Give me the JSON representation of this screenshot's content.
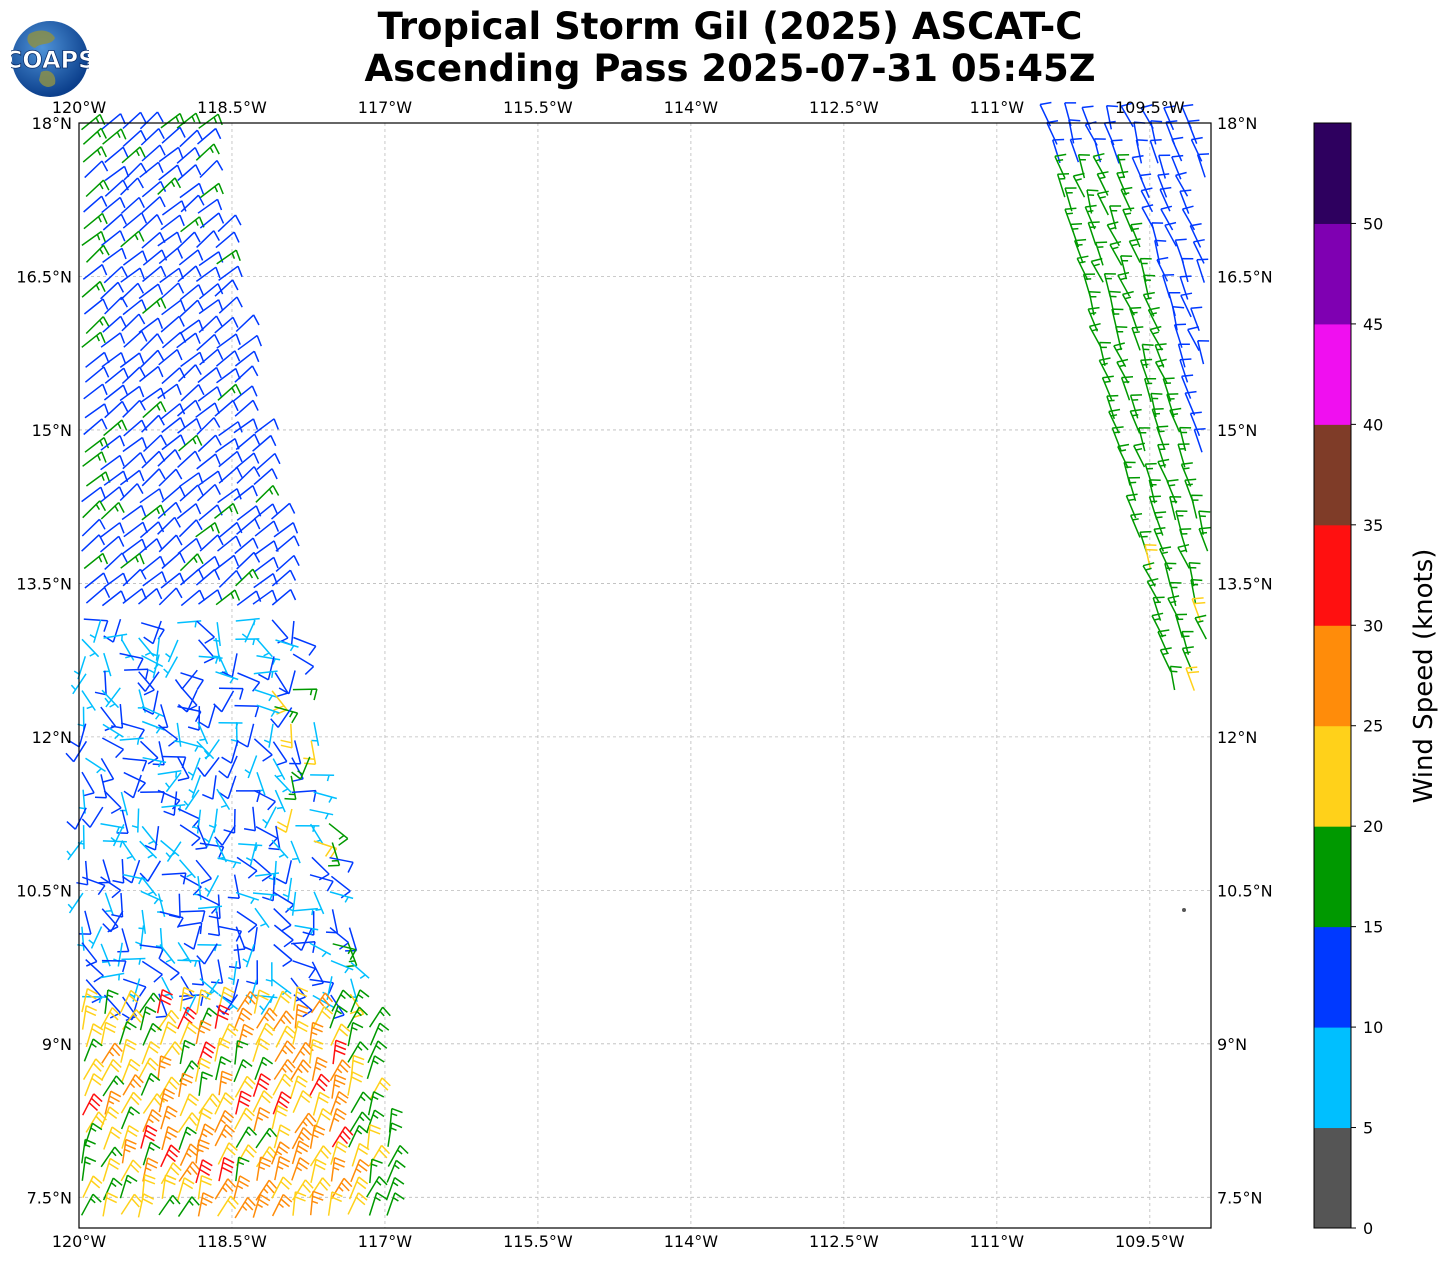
{
  "title": {
    "line1": "Tropical Storm Gil (2025) ASCAT-C",
    "line2": "Ascending Pass 2025-07-31 05:45Z"
  },
  "logo": {
    "text": "COAPS",
    "icon": "globe-logo-icon"
  },
  "map": {
    "lon_ticks": [
      "120°W",
      "118.5°W",
      "117°W",
      "115.5°W",
      "114°W",
      "112.5°W",
      "111°W",
      "109.5°W"
    ],
    "lat_ticks": [
      "18°N",
      "16.5°N",
      "15°N",
      "13.5°N",
      "12°N",
      "10.5°N",
      "9°N",
      "7.5°N"
    ],
    "lon_range": [
      -120.0,
      -108.9
    ],
    "lat_range": [
      7.2,
      18.0
    ],
    "grid": true
  },
  "colorbar": {
    "label": "Wind Speed (knots)",
    "ticks": [
      "0",
      "5",
      "10",
      "15",
      "20",
      "25",
      "30",
      "35",
      "40",
      "45",
      "50"
    ],
    "bins": [
      {
        "min": 0,
        "max": 5,
        "color": "#555555"
      },
      {
        "min": 5,
        "max": 10,
        "color": "#00bfff"
      },
      {
        "min": 10,
        "max": 15,
        "color": "#0039ff"
      },
      {
        "min": 15,
        "max": 20,
        "color": "#009900"
      },
      {
        "min": 20,
        "max": 25,
        "color": "#ffd11a"
      },
      {
        "min": 25,
        "max": 30,
        "color": "#ff8c0a"
      },
      {
        "min": 30,
        "max": 35,
        "color": "#ff1010"
      },
      {
        "min": 35,
        "max": 40,
        "color": "#7f3c28"
      },
      {
        "min": 40,
        "max": 45,
        "color": "#f00ff0"
      },
      {
        "min": 45,
        "max": 50,
        "color": "#7f00b2"
      },
      {
        "min": 50,
        "max": 55,
        "color": "#2e005f"
      }
    ]
  }
}
